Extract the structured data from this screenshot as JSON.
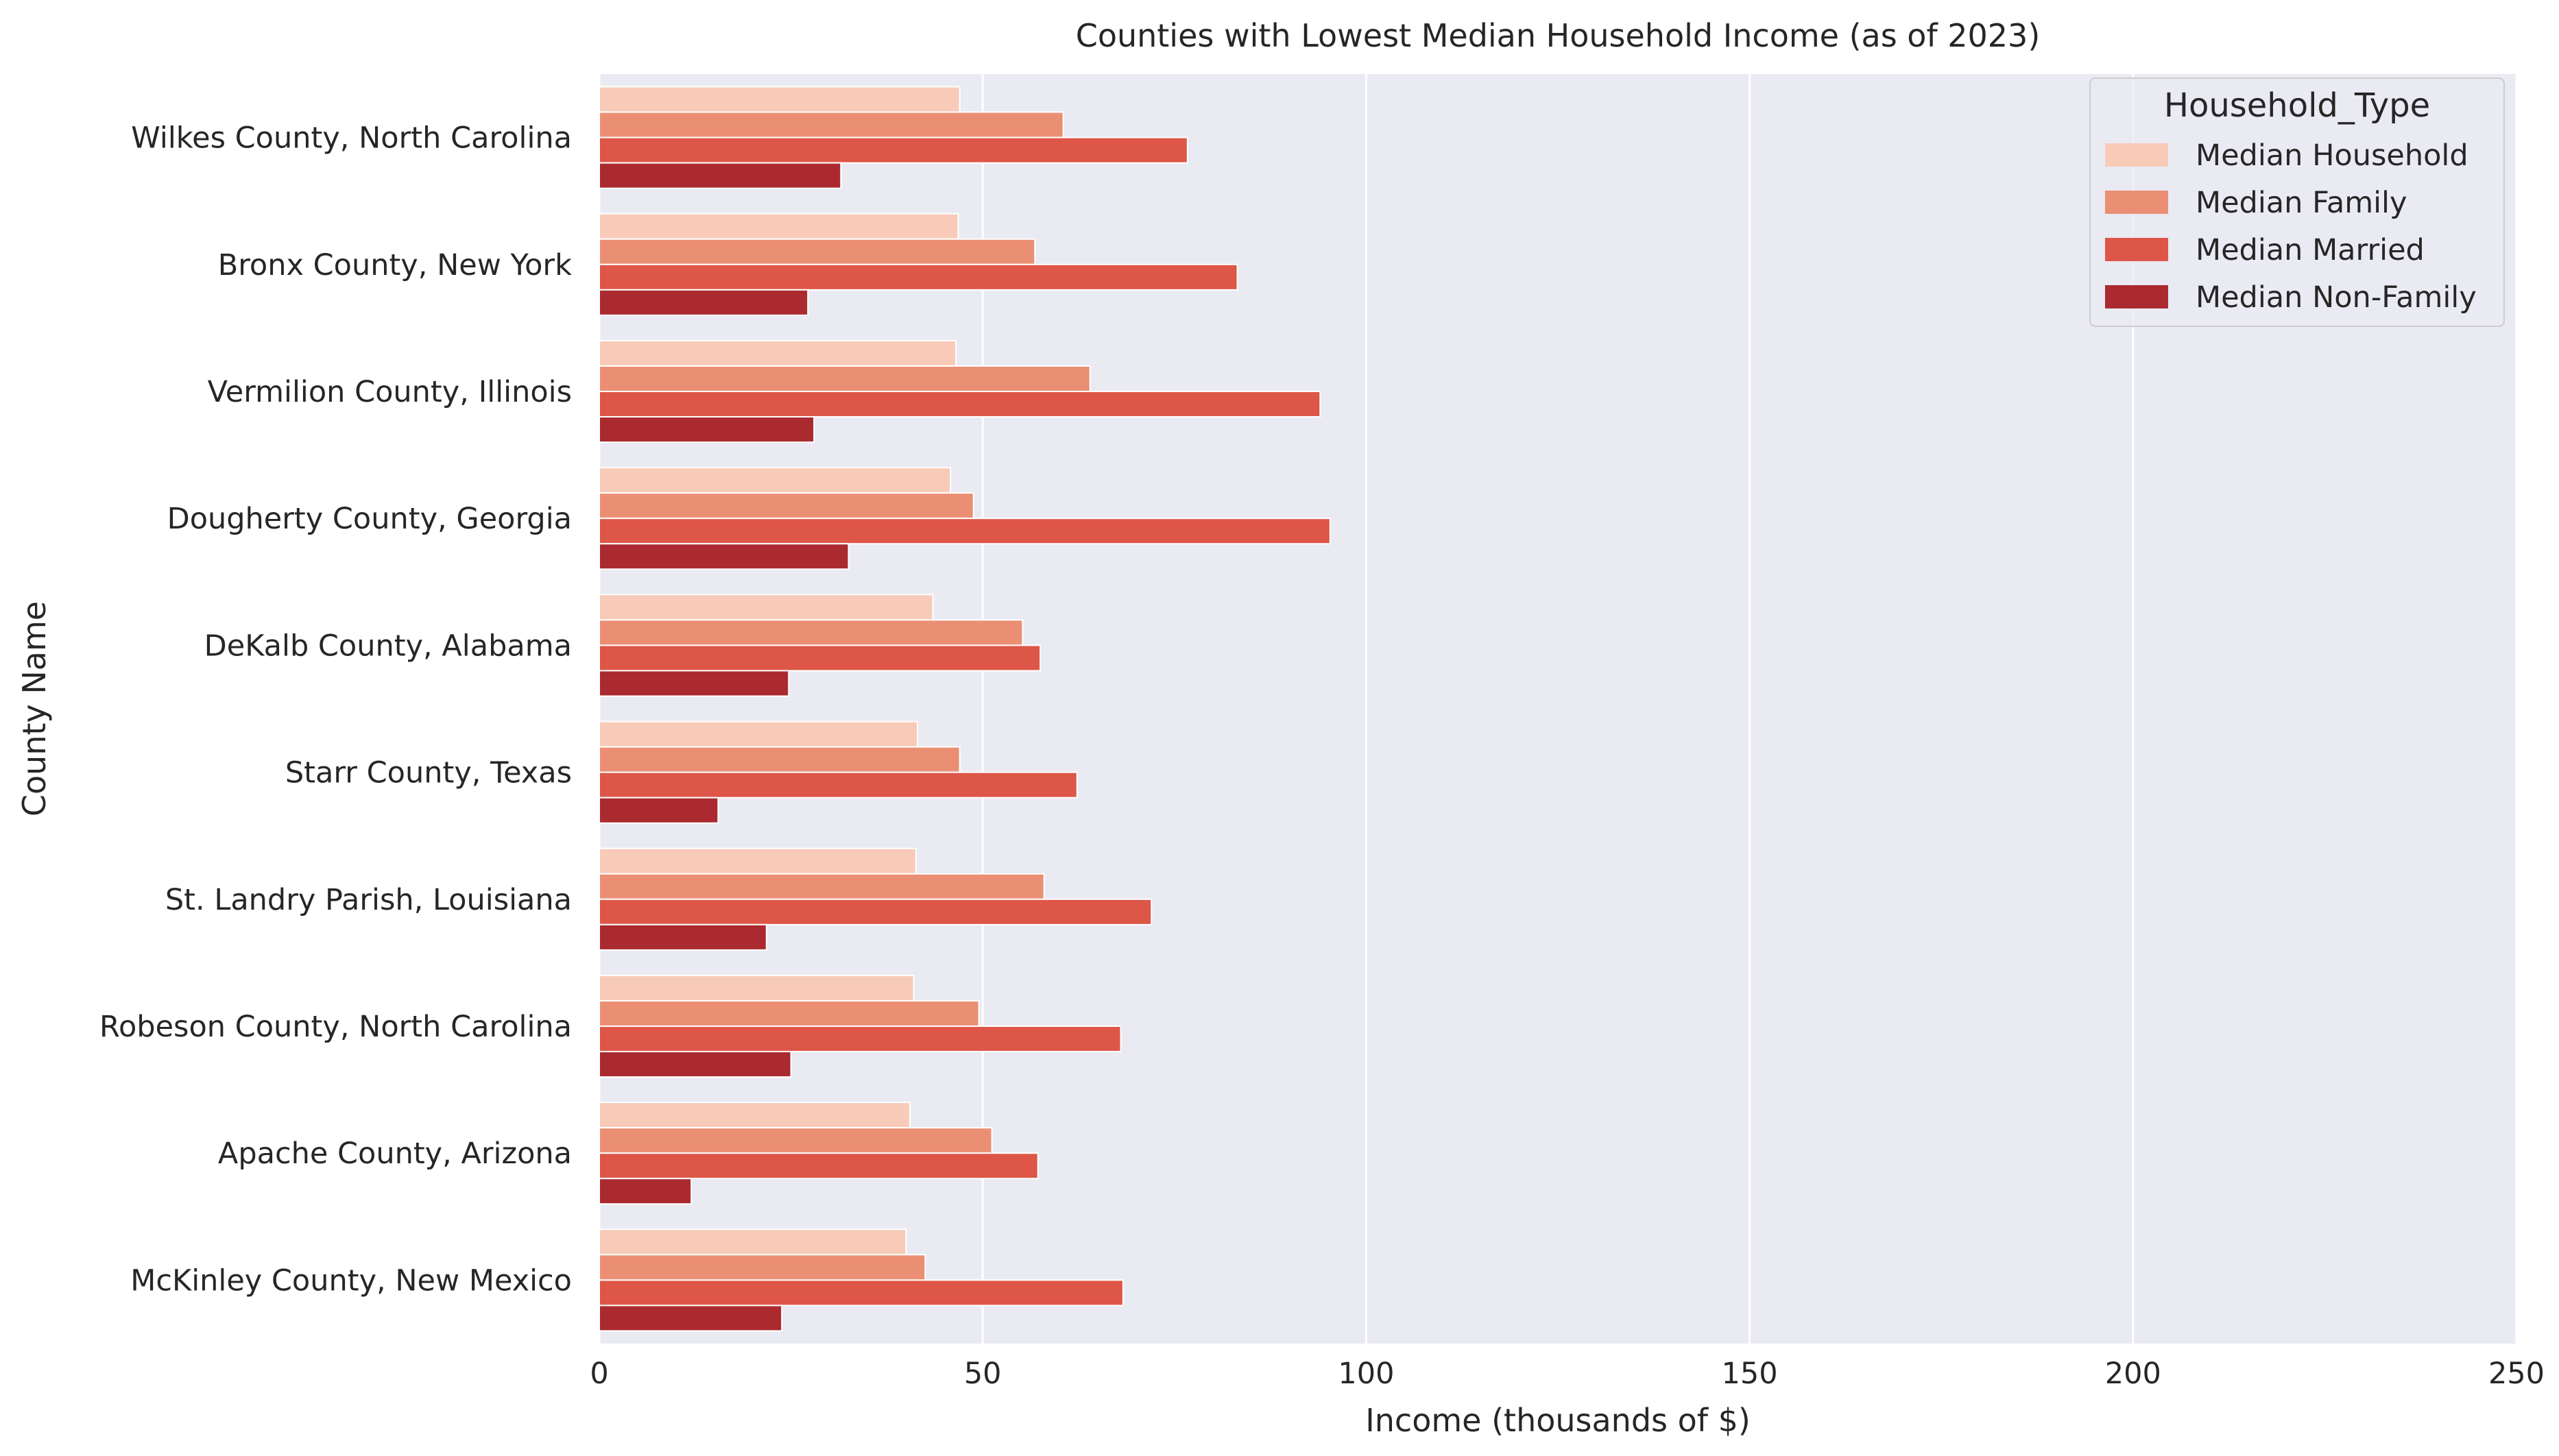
{
  "chart_data": {
    "type": "bar",
    "orientation": "horizontal",
    "title": "Counties with Lowest Median Household Income (as of 2023)",
    "xlabel": "Income (thousands of $)",
    "ylabel": "County Name",
    "xlim": [
      0,
      250
    ],
    "xticks": [
      0,
      50,
      100,
      150,
      200,
      250
    ],
    "grid": true,
    "categories": [
      "Wilkes County, North Carolina",
      "Bronx County, New York",
      "Vermilion County, Illinois",
      "Dougherty County, Georgia",
      "DeKalb County, Alabama",
      "Starr County, Texas",
      "St. Landry Parish, Louisiana",
      "Robeson County, North Carolina",
      "Apache County, Arizona",
      "McKinley County, New Mexico"
    ],
    "series": [
      {
        "name": "Median Household",
        "color": "#f7cbb8",
        "values": [
          47.0,
          46.8,
          46.5,
          45.8,
          43.5,
          41.5,
          41.3,
          41.0,
          40.5,
          40.0
        ]
      },
      {
        "name": "Median Family",
        "color": "#eb8f74",
        "values": [
          60.5,
          56.8,
          64.0,
          48.8,
          55.2,
          47.0,
          58.0,
          49.5,
          51.2,
          42.5
        ]
      },
      {
        "name": "Median Married",
        "color": "#dd5647",
        "values": [
          76.7,
          83.2,
          94.0,
          95.3,
          57.5,
          62.3,
          72.0,
          68.0,
          57.2,
          68.3
        ]
      },
      {
        "name": "Median Non-Family",
        "color": "#ab2a2f",
        "values": [
          31.5,
          27.2,
          28.0,
          32.5,
          24.7,
          15.5,
          21.8,
          25.0,
          12.0,
          23.8
        ]
      }
    ],
    "legend": {
      "title": "Household_Type",
      "position": "top-right"
    },
    "colors": {
      "plot_background": "#eaeaf2",
      "grid": "#ffffff",
      "text": "#262626"
    }
  }
}
